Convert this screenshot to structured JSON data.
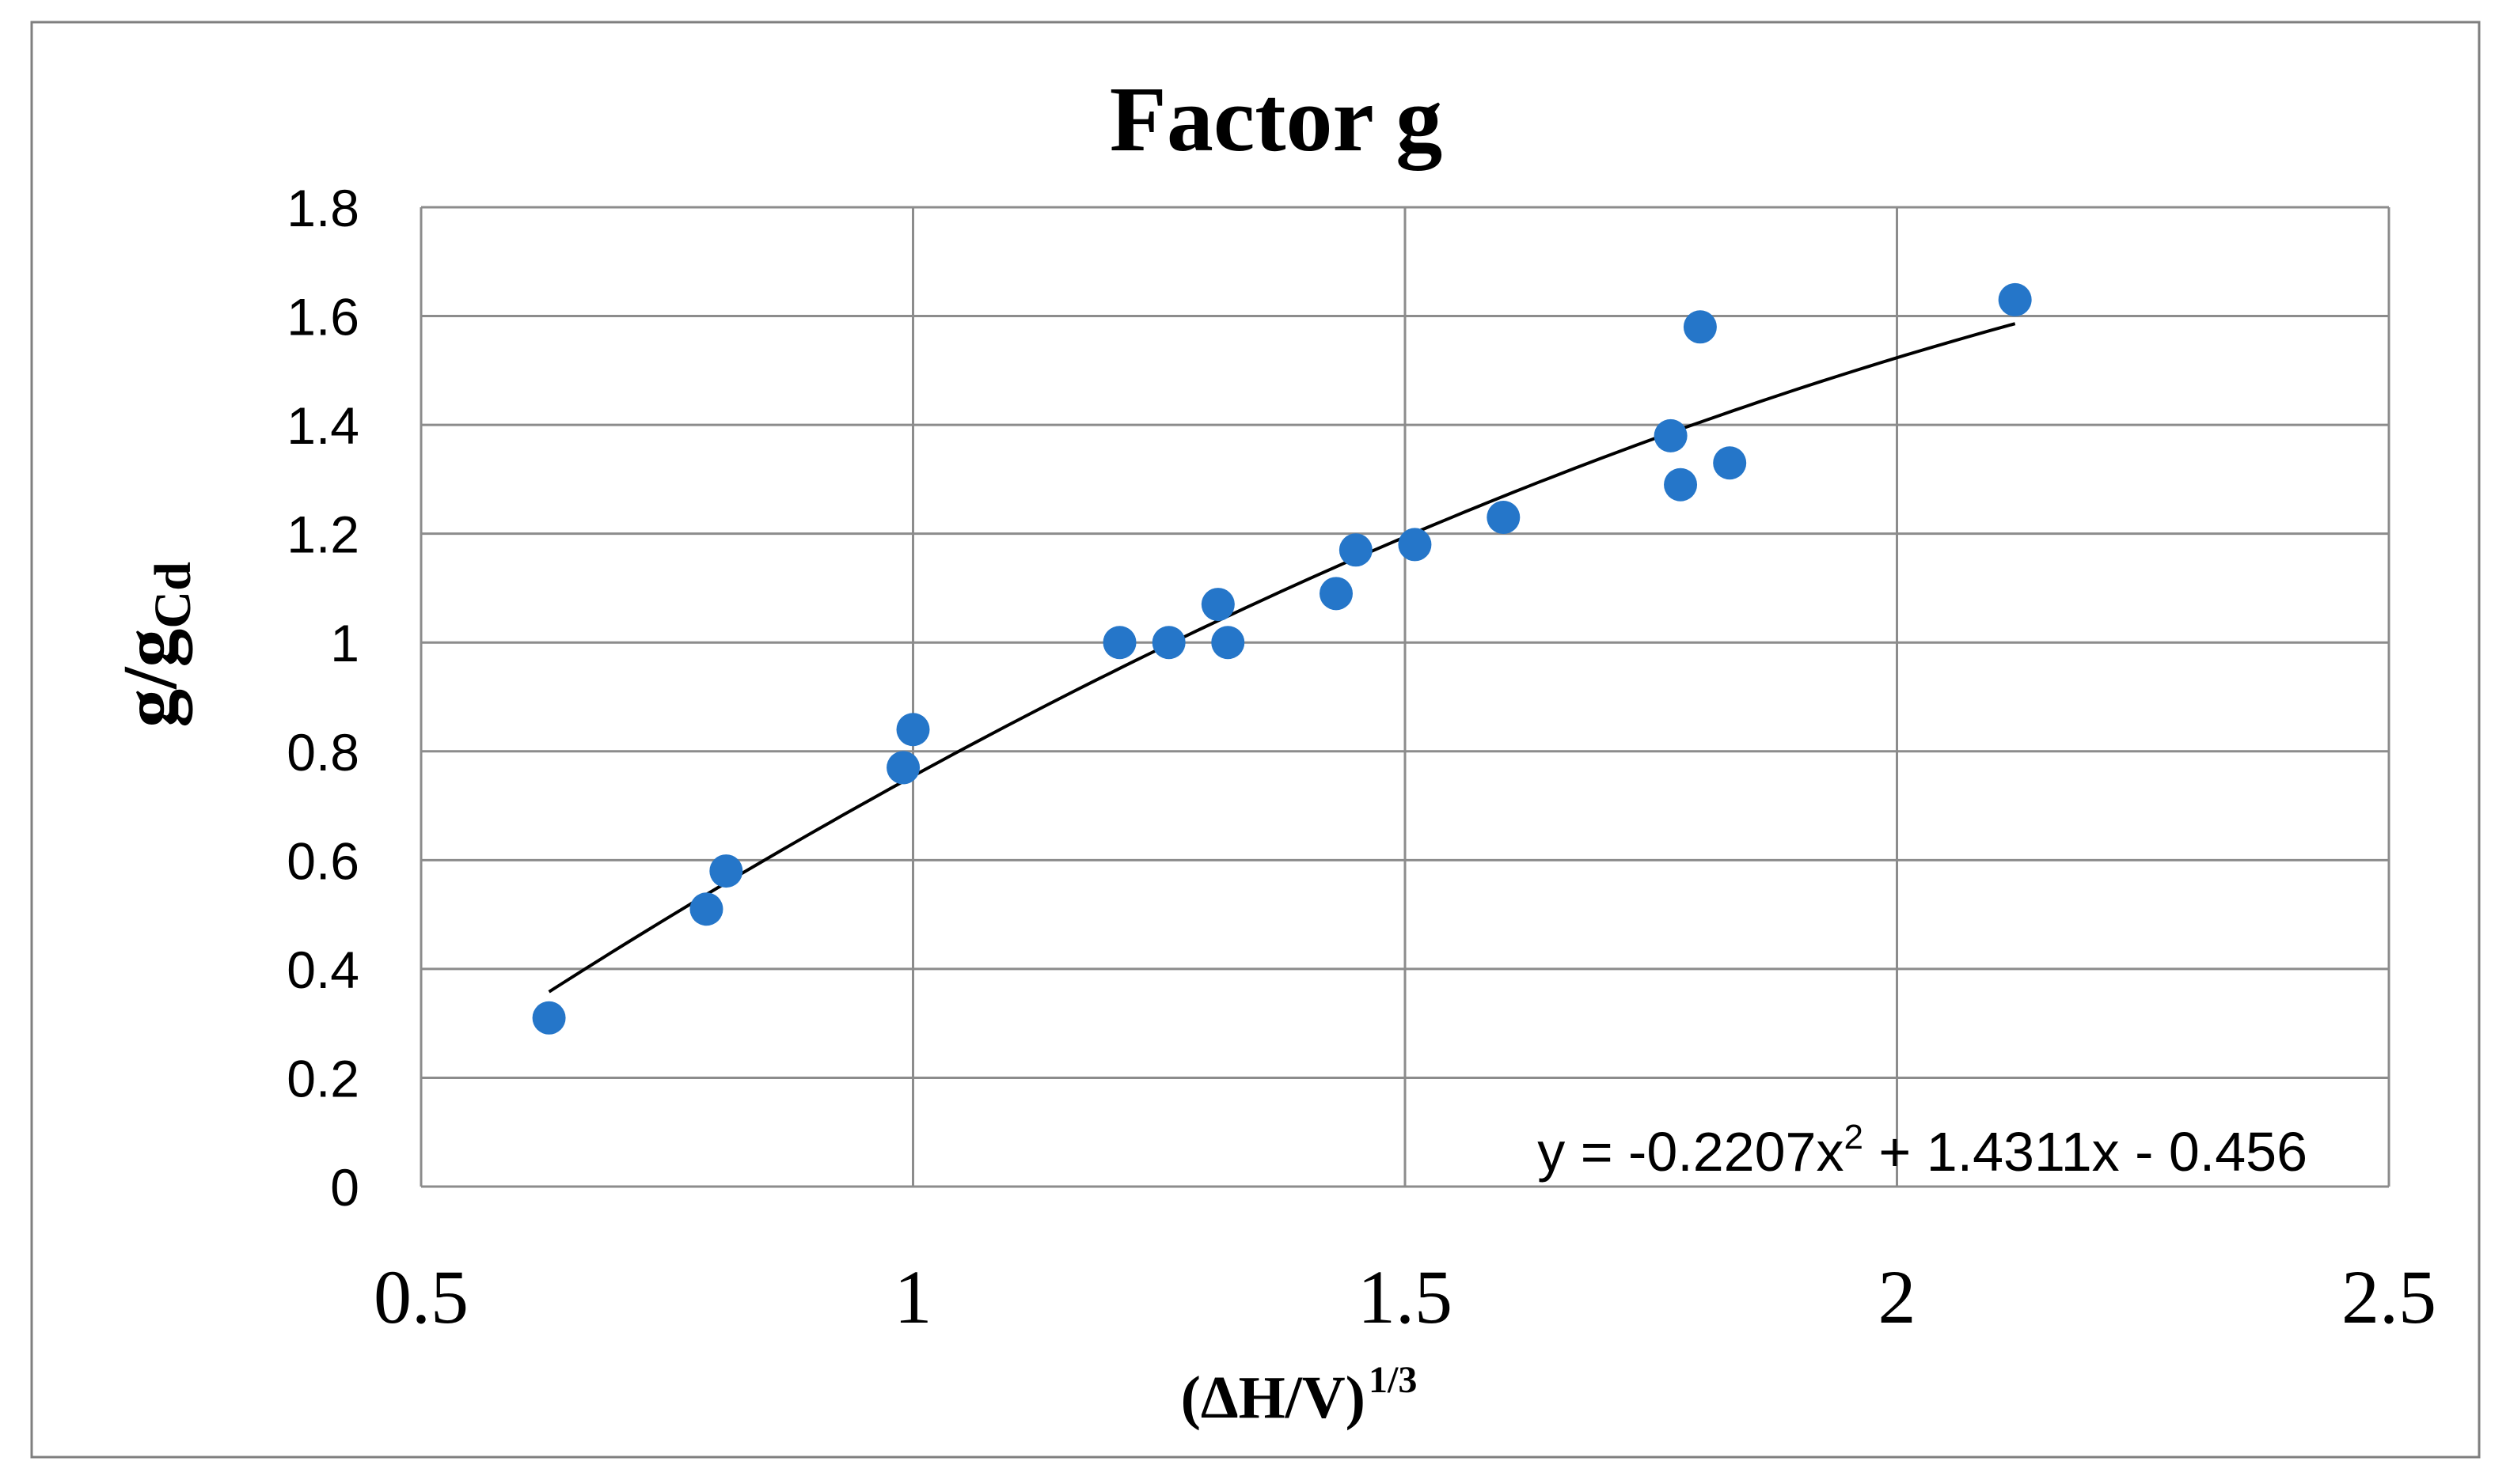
{
  "chart_data": {
    "type": "scatter",
    "title": "Factor g",
    "xlabel": "(ΔH/V)",
    "xlabel_sup": "1/3",
    "ylabel": "g/g",
    "ylabel_sub": "Cd",
    "xlim": [
      0.5,
      2.5
    ],
    "ylim": [
      0,
      1.8
    ],
    "xticks": [
      0.5,
      1,
      1.5,
      2,
      2.5
    ],
    "xtick_labels": [
      "0.5",
      "1",
      "1.5",
      "2",
      "2.5"
    ],
    "yticks": [
      0,
      0.2,
      0.4,
      0.6,
      0.8,
      1,
      1.2,
      1.4,
      1.6,
      1.8
    ],
    "ytick_labels": [
      "0",
      "0.2",
      "0.4",
      "0.6",
      "0.8",
      "1",
      "1.2",
      "1.4",
      "1.6",
      "1.8"
    ],
    "grid": true,
    "legend": "none",
    "series": [
      {
        "color": "#2576C9",
        "x": [
          0.63,
          0.79,
          0.81,
          0.99,
          1.0,
          1.21,
          1.26,
          1.31,
          1.32,
          1.43,
          1.45,
          1.51,
          1.6,
          1.77,
          1.78,
          1.8,
          1.83,
          2.12
        ],
        "y": [
          0.31,
          0.51,
          0.58,
          0.77,
          0.84,
          1.0,
          1.0,
          1.07,
          1.0,
          1.09,
          1.17,
          1.18,
          1.23,
          1.38,
          1.29,
          1.58,
          1.33,
          1.63
        ]
      }
    ],
    "trendline": {
      "type": "polynomial",
      "coefficients": [
        -0.2207,
        1.4311,
        -0.456
      ],
      "x_range": [
        0.63,
        2.12
      ],
      "color": "#000000",
      "equation_prefix": "y = -0.2207x",
      "equation_sup": "2",
      "equation_suffix": " + 1.4311x - 0.456",
      "equation_position": "bottom-right"
    }
  },
  "colors": {
    "frame": "#7f7f7f",
    "grid": "#8c8c8c",
    "marker": "#2576C9",
    "text": "#000000"
  }
}
